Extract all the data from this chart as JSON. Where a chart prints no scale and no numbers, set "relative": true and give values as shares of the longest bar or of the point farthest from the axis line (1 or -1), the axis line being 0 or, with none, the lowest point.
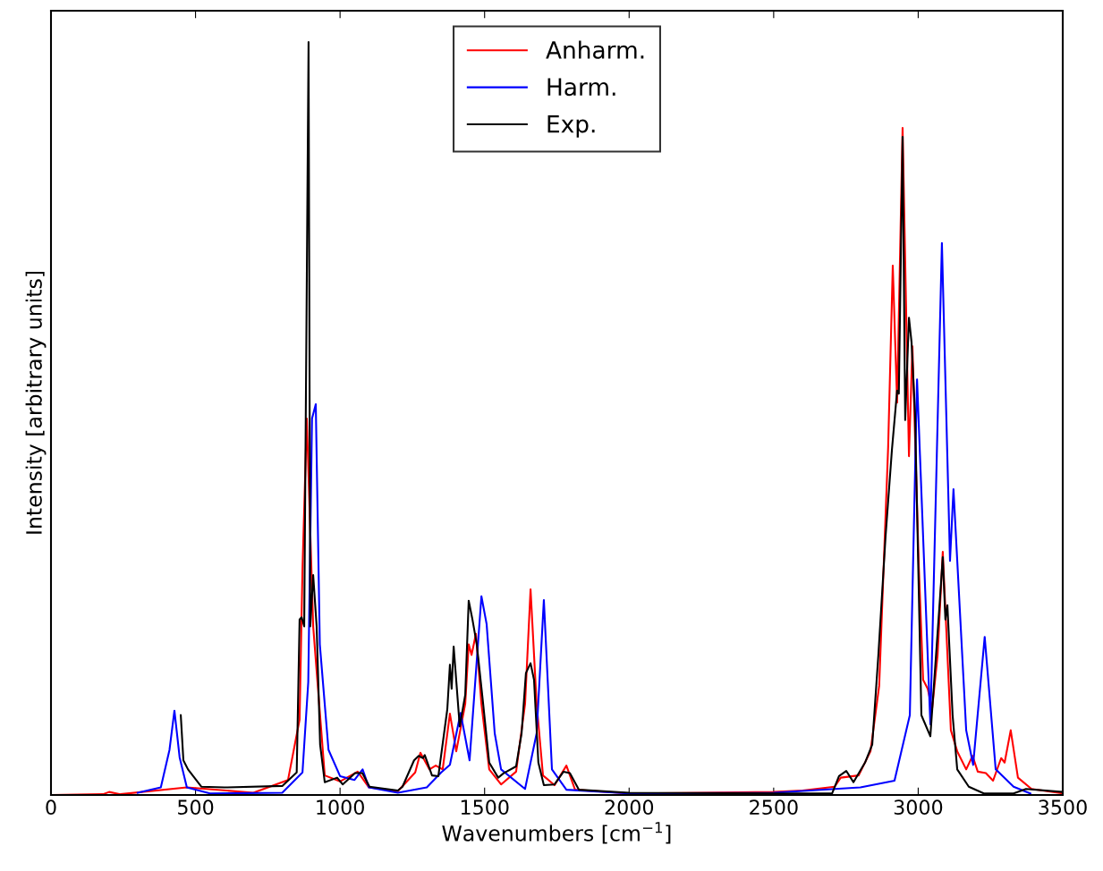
{
  "chart_data": {
    "type": "line",
    "relative": true,
    "xlabel": "Wavenumbers [cm$^{−1}$]",
    "ylabel": "Intensity [arbitrary units]",
    "xlim": [
      0,
      3500
    ],
    "xticks": [
      0,
      500,
      1000,
      1500,
      2000,
      2500,
      3000,
      3500
    ],
    "tick_labels": "x",
    "legend": "top",
    "grid": false,
    "marker": "none",
    "line_style": "solid",
    "series": [
      {
        "name": "Anharm.",
        "color": "#ff0000",
        "x": [
          0,
          180,
          201,
          240,
          470,
          700,
          820,
          860,
          870,
          885,
          907,
          947,
          1000,
          1061,
          1100,
          1200,
          1260,
          1278,
          1309,
          1331,
          1355,
          1380,
          1402,
          1433,
          1445,
          1455,
          1470,
          1489,
          1516,
          1557,
          1609,
          1640,
          1659,
          1680,
          1702,
          1742,
          1783,
          1813,
          2000,
          2500,
          2600,
          2711,
          2732,
          2794,
          2835,
          2865,
          2896,
          2912,
          2927,
          2946,
          2968,
          2980,
          3002,
          3017,
          3033,
          3048,
          3067,
          3085,
          3113,
          3135,
          3166,
          3188,
          3206,
          3234,
          3259,
          3287,
          3299,
          3320,
          3345,
          3392,
          3500
        ],
        "values": [
          0,
          0.001,
          0.004,
          0.001,
          0.01,
          0.003,
          0.02,
          0.1,
          0.3,
          0.5,
          0.224,
          0.026,
          0.018,
          0.031,
          0.01,
          0.005,
          0.03,
          0.056,
          0.034,
          0.039,
          0.034,
          0.108,
          0.058,
          0.121,
          0.2,
          0.186,
          0.214,
          0.121,
          0.034,
          0.014,
          0.031,
          0.121,
          0.273,
          0.121,
          0.026,
          0.013,
          0.039,
          0.007,
          0.002,
          0.004,
          0.006,
          0.011,
          0.023,
          0.026,
          0.058,
          0.145,
          0.462,
          0.703,
          0.521,
          0.886,
          0.45,
          0.596,
          0.304,
          0.153,
          0.141,
          0.114,
          0.185,
          0.323,
          0.086,
          0.058,
          0.034,
          0.052,
          0.031,
          0.029,
          0.019,
          0.049,
          0.043,
          0.086,
          0.023,
          0.008,
          0.002
        ]
      },
      {
        "name": "Harm.",
        "color": "#0000ff",
        "x": [
          300,
          380,
          410,
          427,
          445,
          470,
          550,
          800,
          870,
          890,
          903,
          916,
          930,
          960,
          1000,
          1050,
          1078,
          1100,
          1200,
          1300,
          1350,
          1380,
          1417,
          1448,
          1489,
          1507,
          1535,
          1557,
          1640,
          1680,
          1705,
          1733,
          1783,
          2000,
          2500,
          2800,
          2918,
          2971,
          2996,
          3042,
          3082,
          3110,
          3122,
          3166,
          3190,
          3230,
          3268,
          3330,
          3388
        ],
        "values": [
          0.003,
          0.01,
          0.06,
          0.112,
          0.05,
          0.01,
          0.002,
          0.003,
          0.03,
          0.15,
          0.5,
          0.519,
          0.2,
          0.06,
          0.025,
          0.02,
          0.034,
          0.01,
          0.003,
          0.01,
          0.03,
          0.04,
          0.109,
          0.046,
          0.264,
          0.227,
          0.082,
          0.034,
          0.008,
          0.082,
          0.259,
          0.034,
          0.007,
          0.002,
          0.003,
          0.01,
          0.019,
          0.106,
          0.552,
          0.094,
          0.733,
          0.311,
          0.406,
          0.086,
          0.04,
          0.21,
          0.034,
          0.011,
          0.002
        ]
      },
      {
        "name": "Exp.",
        "color": "#000000",
        "x": [
          449,
          458,
          474,
          520,
          600,
          800,
          850,
          860,
          867,
          876,
          891,
          897,
          907,
          919,
          931,
          947,
          990,
          1009,
          1052,
          1077,
          1102,
          1200,
          1216,
          1256,
          1272,
          1287,
          1293,
          1318,
          1340,
          1371,
          1380,
          1386,
          1393,
          1414,
          1433,
          1445,
          1458,
          1473,
          1495,
          1516,
          1547,
          1566,
          1609,
          1628,
          1643,
          1659,
          1671,
          1686,
          1705,
          1742,
          1773,
          1795,
          1826,
          2000,
          2500,
          2702,
          2726,
          2751,
          2776,
          2816,
          2841,
          2862,
          2887,
          2909,
          2927,
          2933,
          2946,
          2955,
          2968,
          2977,
          2989,
          3011,
          3042,
          3073,
          3085,
          3094,
          3101,
          3119,
          3135,
          3175,
          3227,
          3330,
          3373,
          3500
        ],
        "values": [
          0.106,
          0.046,
          0.034,
          0.011,
          0.01,
          0.012,
          0.03,
          0.233,
          0.236,
          0.224,
          1.0,
          0.224,
          0.292,
          0.224,
          0.067,
          0.017,
          0.023,
          0.014,
          0.029,
          0.029,
          0.011,
          0.006,
          0.011,
          0.046,
          0.052,
          0.049,
          0.053,
          0.026,
          0.025,
          0.114,
          0.173,
          0.141,
          0.197,
          0.091,
          0.133,
          0.258,
          0.233,
          0.2,
          0.121,
          0.043,
          0.023,
          0.029,
          0.038,
          0.082,
          0.162,
          0.175,
          0.153,
          0.043,
          0.013,
          0.014,
          0.031,
          0.029,
          0.007,
          0.003,
          0.002,
          0.002,
          0.025,
          0.032,
          0.017,
          0.043,
          0.067,
          0.185,
          0.343,
          0.458,
          0.537,
          0.533,
          0.874,
          0.498,
          0.634,
          0.601,
          0.507,
          0.106,
          0.078,
          0.248,
          0.316,
          0.233,
          0.252,
          0.106,
          0.034,
          0.011,
          0.002,
          0.002,
          0.008,
          0.004
        ]
      }
    ]
  }
}
